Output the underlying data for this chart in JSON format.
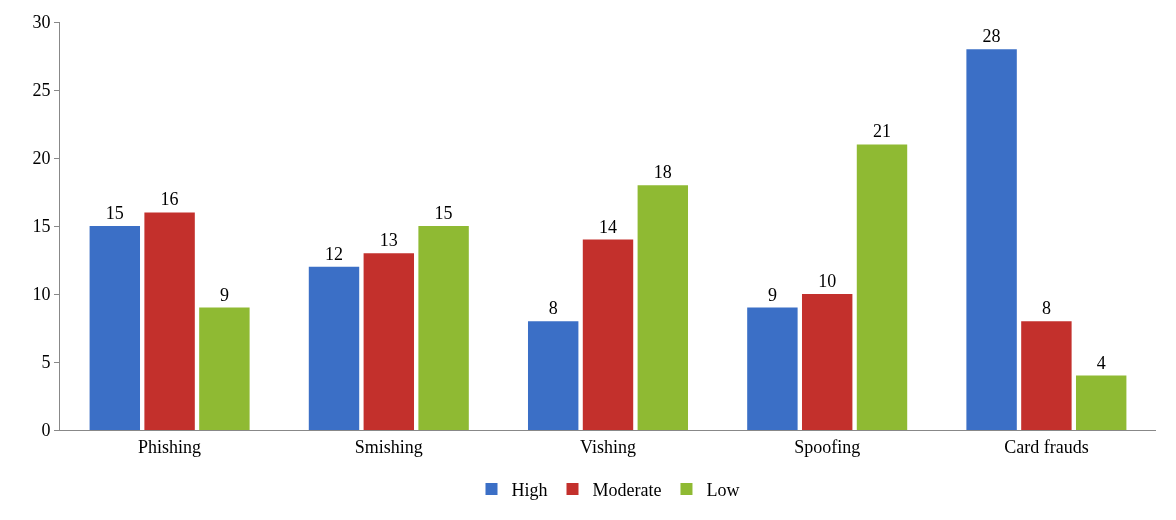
{
  "chart_data": {
    "type": "bar",
    "categories": [
      "Phishing",
      "Smishing",
      "Vishing",
      "Spoofing",
      "Card frauds"
    ],
    "series": [
      {
        "name": "High",
        "color": "#3b6fc6",
        "values": [
          15,
          12,
          8,
          9,
          28
        ]
      },
      {
        "name": "Moderate",
        "color": "#c3302c",
        "values": [
          16,
          13,
          14,
          10,
          8
        ]
      },
      {
        "name": "Low",
        "color": "#8fba33",
        "values": [
          9,
          15,
          18,
          21,
          4
        ]
      }
    ],
    "ylim": [
      0,
      30
    ],
    "yticks": [
      0,
      5,
      10,
      15,
      20,
      25,
      30
    ],
    "grid": false,
    "legend": "bottom",
    "data_labels": true
  }
}
